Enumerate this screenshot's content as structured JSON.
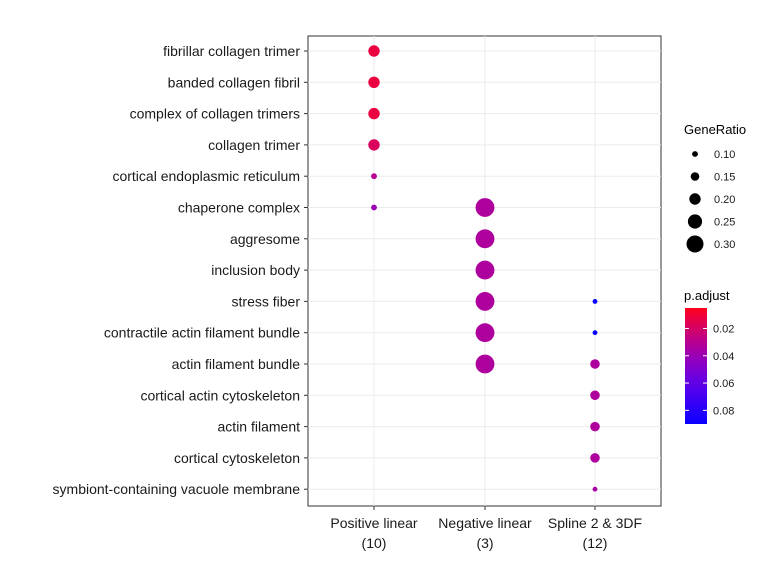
{
  "chart_data": {
    "type": "scatter",
    "categories_x": [
      {
        "line1": "Positive linear",
        "line2": "(10)"
      },
      {
        "line1": "Negative linear",
        "line2": "(3)"
      },
      {
        "line1": "Spline 2 & 3DF",
        "line2": "(12)"
      }
    ],
    "categories_y": [
      "fibrillar collagen trimer",
      "banded collagen fibril",
      "complex of collagen trimers",
      "collagen trimer",
      "cortical endoplasmic reticulum",
      "chaperone complex",
      "aggresome",
      "inclusion body",
      "stress fiber",
      "contractile actin filament bundle",
      "actin filament bundle",
      "cortical actin cytoskeleton",
      "actin filament",
      "cortical cytoskeleton",
      "symbiont-containing vacuole membrane"
    ],
    "points": [
      {
        "x": "Positive linear",
        "y": "fibrillar collagen trimer",
        "GeneRatio": 0.2,
        "p_adjust": 0.012
      },
      {
        "x": "Positive linear",
        "y": "banded collagen fibril",
        "GeneRatio": 0.2,
        "p_adjust": 0.012
      },
      {
        "x": "Positive linear",
        "y": "complex of collagen trimers",
        "GeneRatio": 0.2,
        "p_adjust": 0.012
      },
      {
        "x": "Positive linear",
        "y": "collagen trimer",
        "GeneRatio": 0.2,
        "p_adjust": 0.018
      },
      {
        "x": "Positive linear",
        "y": "cortical endoplasmic reticulum",
        "GeneRatio": 0.1,
        "p_adjust": 0.03
      },
      {
        "x": "Positive linear",
        "y": "chaperone complex",
        "GeneRatio": 0.1,
        "p_adjust": 0.04
      },
      {
        "x": "Negative linear",
        "y": "chaperone complex",
        "GeneRatio": 0.333,
        "p_adjust": 0.033
      },
      {
        "x": "Negative linear",
        "y": "aggresome",
        "GeneRatio": 0.333,
        "p_adjust": 0.033
      },
      {
        "x": "Negative linear",
        "y": "inclusion body",
        "GeneRatio": 0.333,
        "p_adjust": 0.033
      },
      {
        "x": "Negative linear",
        "y": "stress fiber",
        "GeneRatio": 0.333,
        "p_adjust": 0.033
      },
      {
        "x": "Negative linear",
        "y": "contractile actin filament bundle",
        "GeneRatio": 0.333,
        "p_adjust": 0.033
      },
      {
        "x": "Negative linear",
        "y": "actin filament bundle",
        "GeneRatio": 0.333,
        "p_adjust": 0.033
      },
      {
        "x": "Spline 2 & 3DF",
        "y": "stress fiber",
        "GeneRatio": 0.083,
        "p_adjust": 0.09
      },
      {
        "x": "Spline 2 & 3DF",
        "y": "contractile actin filament bundle",
        "GeneRatio": 0.083,
        "p_adjust": 0.09
      },
      {
        "x": "Spline 2 & 3DF",
        "y": "actin filament bundle",
        "GeneRatio": 0.167,
        "p_adjust": 0.033
      },
      {
        "x": "Spline 2 & 3DF",
        "y": "cortical actin cytoskeleton",
        "GeneRatio": 0.167,
        "p_adjust": 0.033
      },
      {
        "x": "Spline 2 & 3DF",
        "y": "actin filament",
        "GeneRatio": 0.167,
        "p_adjust": 0.033
      },
      {
        "x": "Spline 2 & 3DF",
        "y": "cortical cytoskeleton",
        "GeneRatio": 0.167,
        "p_adjust": 0.033
      },
      {
        "x": "Spline 2 & 3DF",
        "y": "symbiont-containing vacuole membrane",
        "GeneRatio": 0.083,
        "p_adjust": 0.035
      }
    ],
    "size_legend": {
      "title": "GeneRatio",
      "values": [
        0.1,
        0.15,
        0.2,
        0.25,
        0.3
      ],
      "labels": [
        "0.10",
        "0.15",
        "0.20",
        "0.25",
        "0.30"
      ]
    },
    "color_legend": {
      "title": "p.adjust",
      "range": [
        0.005,
        0.09
      ],
      "ticks": [
        0.02,
        0.04,
        0.06,
        0.08
      ],
      "labels": [
        "0.02",
        "0.04",
        "0.06",
        "0.08"
      ],
      "low_color": "#ff0000",
      "high_color": "#0000ff"
    },
    "grid": true
  }
}
